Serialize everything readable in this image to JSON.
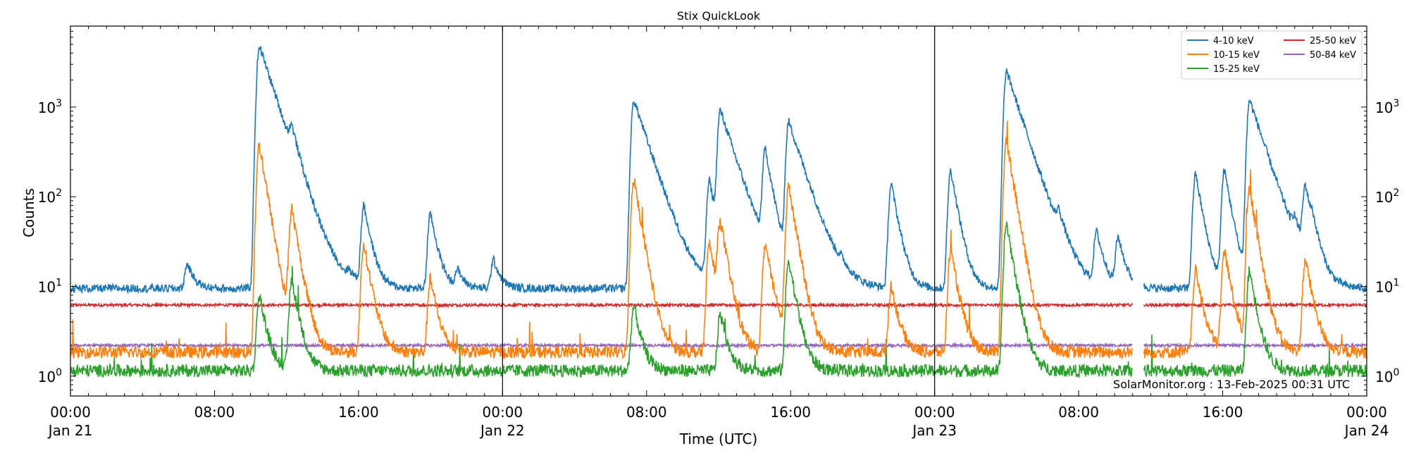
{
  "chart_data": {
    "type": "line",
    "title": "Stix QuickLook",
    "xlabel": "Time (UTC)",
    "ylabel": "Counts",
    "yscale": "log",
    "ylim": [
      0.6,
      8000
    ],
    "xlim_hours": [
      0,
      72
    ],
    "grid": false,
    "legend_position": "top-right",
    "credit": "SolarMonitor.org : 13-Feb-2025 00:31 UTC",
    "day_separators_hours": [
      24,
      48
    ],
    "data_gap_hours": [
      59.0,
      59.6
    ],
    "x_ticks": [
      {
        "h": 0,
        "time": "00:00",
        "date": "Jan 21"
      },
      {
        "h": 8,
        "time": "08:00",
        "date": ""
      },
      {
        "h": 16,
        "time": "16:00",
        "date": ""
      },
      {
        "h": 24,
        "time": "00:00",
        "date": "Jan 22"
      },
      {
        "h": 32,
        "time": "08:00",
        "date": ""
      },
      {
        "h": 40,
        "time": "16:00",
        "date": ""
      },
      {
        "h": 48,
        "time": "00:00",
        "date": "Jan 23"
      },
      {
        "h": 56,
        "time": "08:00",
        "date": ""
      },
      {
        "h": 64,
        "time": "16:00",
        "date": ""
      },
      {
        "h": 72,
        "time": "00:00",
        "date": "Jan 24"
      }
    ],
    "y_ticks": [
      {
        "v": 1,
        "base": "10",
        "exp": "0"
      },
      {
        "v": 10,
        "base": "10",
        "exp": "1"
      },
      {
        "v": 100,
        "base": "10",
        "exp": "2"
      },
      {
        "v": 1000,
        "base": "10",
        "exp": "3"
      }
    ],
    "series": [
      {
        "name": "4-10 keV",
        "color": "#1f77b4",
        "baseline": 9.5,
        "flares": [
          [
            10.5,
            4800
          ],
          [
            12.3,
            270
          ],
          [
            16.3,
            80
          ],
          [
            20.0,
            65
          ],
          [
            6.5,
            18
          ],
          [
            15.5,
            12
          ],
          [
            21.5,
            15
          ],
          [
            23.5,
            20
          ],
          [
            31.3,
            1200
          ],
          [
            36.1,
            900
          ],
          [
            35.5,
            150
          ],
          [
            38.6,
            320
          ],
          [
            39.9,
            680
          ],
          [
            45.6,
            140
          ],
          [
            42.8,
            12
          ],
          [
            48.9,
            200
          ],
          [
            52.0,
            2500
          ],
          [
            54.9,
            35
          ],
          [
            57.0,
            40
          ],
          [
            58.2,
            35
          ],
          [
            62.5,
            180
          ],
          [
            64.1,
            200
          ],
          [
            65.5,
            1200
          ],
          [
            68.6,
            120
          ],
          [
            68.0,
            30
          ],
          [
            69.0,
            25
          ]
        ]
      },
      {
        "name": "10-15 keV",
        "color": "#ff7f0e",
        "baseline": 1.85,
        "flares": [
          [
            10.5,
            380
          ],
          [
            12.3,
            70
          ],
          [
            16.3,
            30
          ],
          [
            20.0,
            12
          ],
          [
            31.3,
            160
          ],
          [
            36.1,
            50
          ],
          [
            35.5,
            30
          ],
          [
            38.6,
            30
          ],
          [
            39.9,
            130
          ],
          [
            45.6,
            10
          ],
          [
            48.9,
            25
          ],
          [
            52.0,
            420
          ],
          [
            62.5,
            15
          ],
          [
            64.1,
            25
          ],
          [
            65.5,
            120
          ],
          [
            68.6,
            20
          ]
        ]
      },
      {
        "name": "15-25 keV",
        "color": "#2ca02c",
        "baseline": 1.15,
        "flares": [
          [
            10.5,
            8
          ],
          [
            12.3,
            12
          ],
          [
            31.3,
            6
          ],
          [
            36.1,
            5
          ],
          [
            39.9,
            20
          ],
          [
            52.0,
            50
          ],
          [
            65.5,
            15
          ]
        ]
      },
      {
        "name": "25-50 keV",
        "color": "#d62728",
        "baseline": 6.2,
        "flares": []
      },
      {
        "name": "50-84 keV",
        "color": "#9467bd",
        "baseline": 2.2,
        "flares": []
      }
    ]
  }
}
